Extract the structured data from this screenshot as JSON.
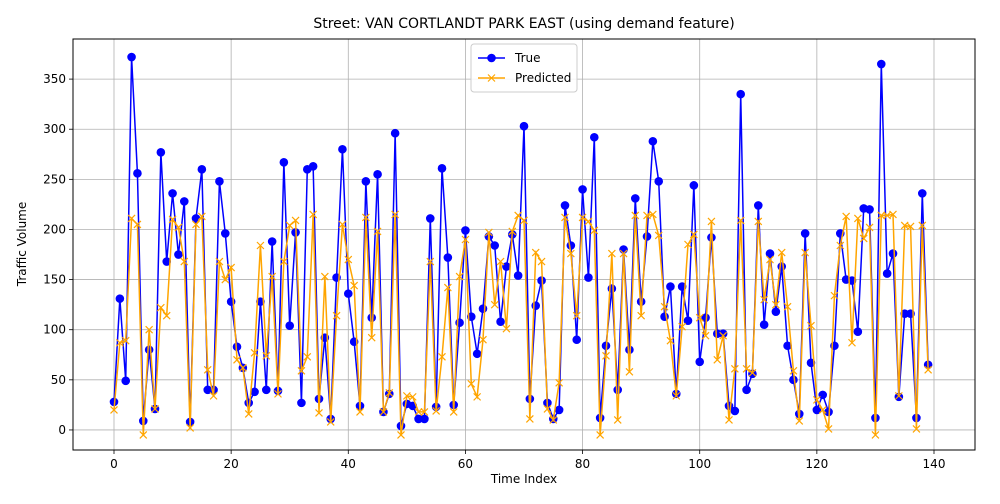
{
  "chart_data": {
    "type": "line",
    "title": "Street: VAN CORTLANDT PARK EAST (using demand feature)",
    "xlabel": "Time Index",
    "ylabel": "Traffic Volume",
    "xlim": [
      -7,
      147
    ],
    "ylim": [
      -20,
      390
    ],
    "xticks": [
      0,
      20,
      40,
      60,
      80,
      100,
      120,
      140
    ],
    "yticks": [
      0,
      50,
      100,
      150,
      200,
      250,
      300,
      350
    ],
    "grid": true,
    "legend_position": "top-center",
    "series": [
      {
        "name": "True",
        "color": "#0000ff",
        "marker": "circle",
        "values": [
          28,
          131,
          49,
          372,
          256,
          9,
          80,
          21,
          277,
          168,
          236,
          175,
          228,
          8,
          211,
          260,
          40,
          40,
          248,
          196,
          128,
          83,
          62,
          27,
          38,
          128,
          40,
          188,
          39,
          267,
          104,
          197,
          27,
          260,
          263,
          31,
          92,
          11,
          152,
          280,
          136,
          88,
          24,
          248,
          112,
          255,
          18,
          36,
          296,
          4,
          26,
          24,
          11,
          11,
          211,
          23,
          261,
          172,
          25,
          107,
          199,
          113,
          76,
          121,
          193,
          184,
          108,
          163,
          195,
          154,
          303,
          31,
          124,
          149,
          27,
          11,
          20,
          224,
          184,
          90,
          240,
          152,
          292,
          12,
          84,
          141,
          40,
          180,
          80,
          231,
          128,
          193,
          288,
          248,
          113,
          143,
          36,
          143,
          109,
          244,
          68,
          112,
          192,
          96,
          96,
          24,
          19,
          335,
          40,
          56,
          224,
          105,
          176,
          118,
          163,
          84,
          50,
          16,
          196,
          67,
          20,
          35,
          18,
          84,
          196,
          150,
          149,
          98,
          221,
          220,
          12,
          365,
          156,
          176,
          33,
          116,
          116,
          12,
          236,
          65
        ]
      },
      {
        "name": "Predicted",
        "color": "#ffa500",
        "marker": "x",
        "values": [
          20,
          87,
          89,
          211,
          205,
          -5,
          100,
          21,
          122,
          114,
          210,
          202,
          168,
          2,
          205,
          213,
          60,
          34,
          168,
          150,
          162,
          70,
          62,
          16,
          77,
          184,
          74,
          153,
          36,
          168,
          204,
          209,
          59,
          73,
          215,
          17,
          153,
          8,
          114,
          205,
          170,
          144,
          18,
          212,
          92,
          198,
          18,
          37,
          215,
          -5,
          34,
          33,
          18,
          18,
          168,
          19,
          73,
          142,
          18,
          153,
          190,
          46,
          33,
          90,
          197,
          125,
          168,
          101,
          198,
          214,
          209,
          11,
          177,
          168,
          21,
          10,
          47,
          212,
          176,
          114,
          212,
          208,
          199,
          -5,
          74,
          176,
          10,
          176,
          58,
          214,
          114,
          214,
          215,
          194,
          123,
          89,
          34,
          103,
          185,
          195,
          112,
          94,
          208,
          70,
          94,
          10,
          61,
          209,
          61,
          57,
          208,
          130,
          170,
          125,
          177,
          123,
          59,
          9,
          177,
          104,
          30,
          20,
          1,
          134,
          184,
          213,
          87,
          211,
          191,
          202,
          -5,
          214,
          214,
          215,
          34,
          204,
          203,
          1,
          204,
          60
        ]
      }
    ]
  }
}
